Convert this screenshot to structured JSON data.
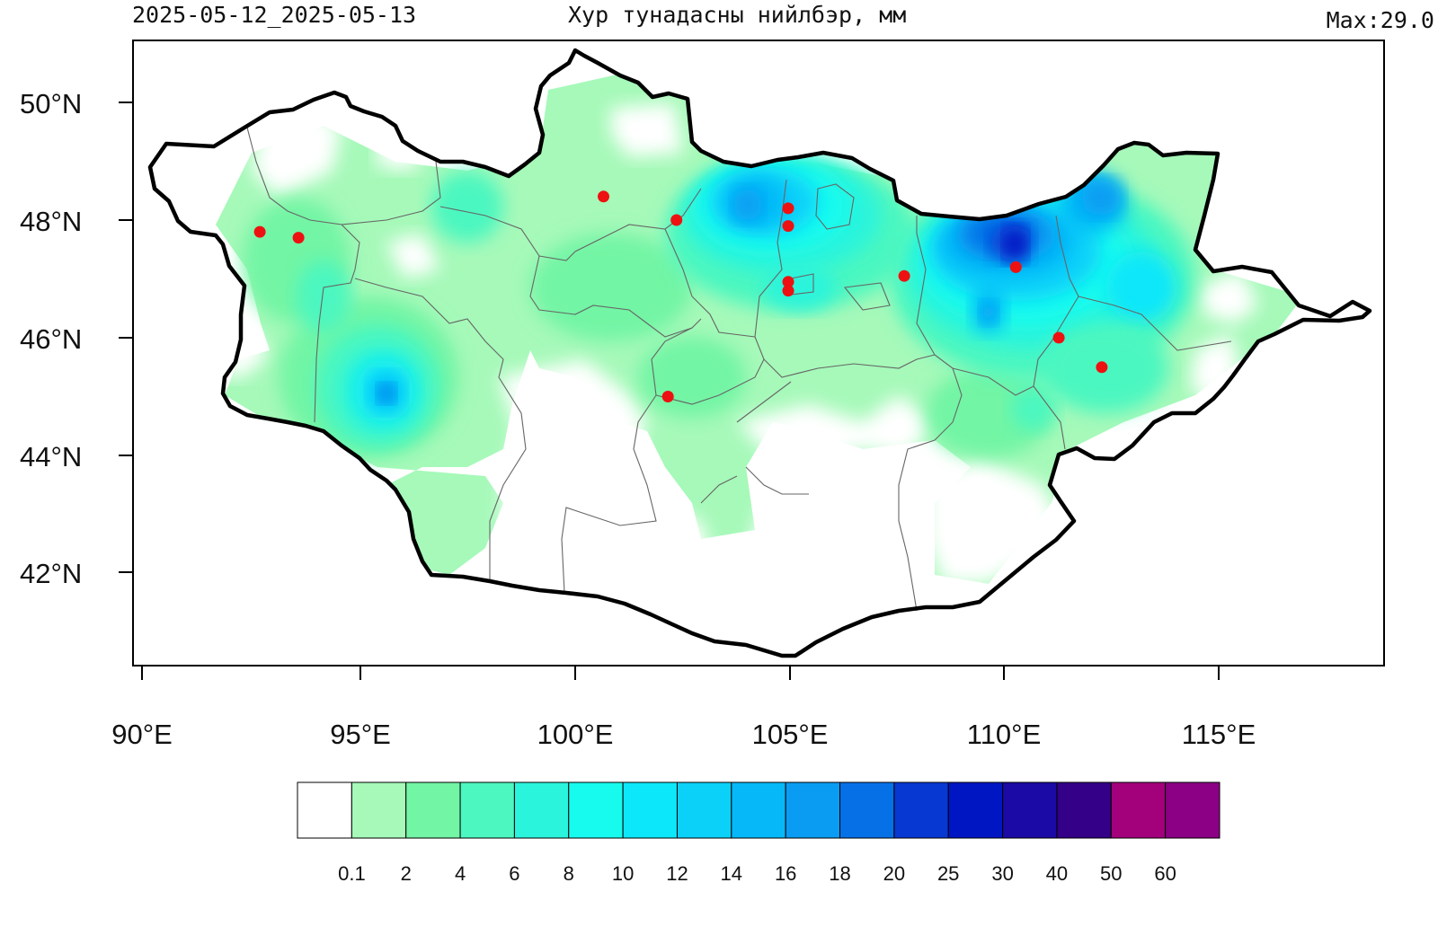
{
  "header": {
    "date_range": "2025-05-12_2025-05-13",
    "title": "Хур тунадасны нийлбэр, мм",
    "max_label": "Max:29.0"
  },
  "axes": {
    "lat_labels": [
      "50°N",
      "48°N",
      "46°N",
      "44°N",
      "42°N"
    ],
    "lon_labels": [
      "90°E",
      "95°E",
      "100°E",
      "105°E",
      "110°E",
      "115°E"
    ]
  },
  "colorbar": {
    "labels": [
      "0.1",
      "2",
      "4",
      "6",
      "8",
      "10",
      "12",
      "14",
      "16",
      "18",
      "20",
      "25",
      "30",
      "40",
      "50",
      "60"
    ],
    "colors": [
      "#ffffff",
      "#a6f9b9",
      "#72f5a4",
      "#4cf7c0",
      "#2af4dc",
      "#17fbef",
      "#0ce7f9",
      "#0bd1f9",
      "#06b8f8",
      "#0a9cf2",
      "#0670e7",
      "#0738d2",
      "#0016c3",
      "#1b0aa5",
      "#330087",
      "#a3007c",
      "#8b0085"
    ]
  },
  "stations": [
    {
      "lon": 92.7,
      "lat": 47.8
    },
    {
      "lon": 93.6,
      "lat": 47.7
    },
    {
      "lon": 100.7,
      "lat": 48.4
    },
    {
      "lon": 102.4,
      "lat": 48.0
    },
    {
      "lon": 105.0,
      "lat": 48.2
    },
    {
      "lon": 105.0,
      "lat": 47.9
    },
    {
      "lon": 105.0,
      "lat": 46.95
    },
    {
      "lon": 105.0,
      "lat": 46.8
    },
    {
      "lon": 107.7,
      "lat": 47.05
    },
    {
      "lon": 110.3,
      "lat": 47.2
    },
    {
      "lon": 111.3,
      "lat": 46.0
    },
    {
      "lon": 112.3,
      "lat": 45.5
    },
    {
      "lon": 102.2,
      "lat": 45.0
    }
  ],
  "colors": {
    "station": "#ee1111",
    "border": "#000000",
    "province": "#666666"
  }
}
